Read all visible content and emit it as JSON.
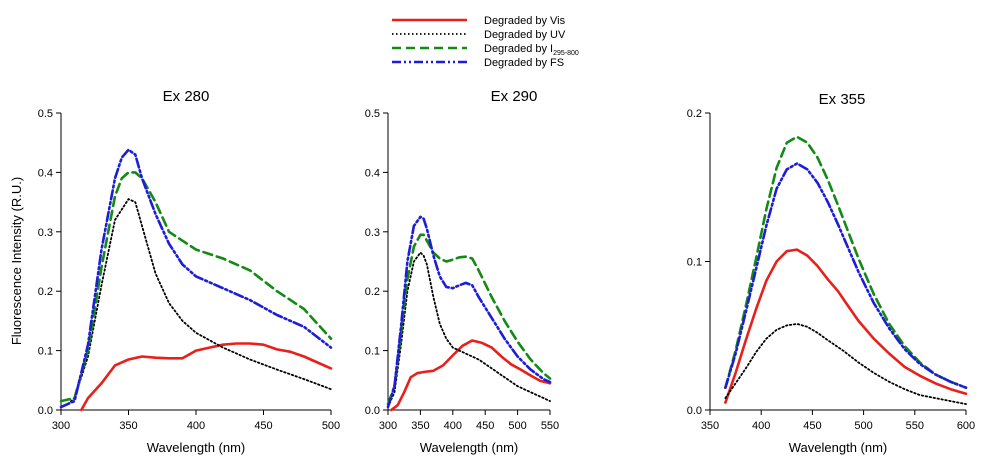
{
  "legend": {
    "items": [
      {
        "label": "Degraded by Vis",
        "sub": "",
        "color": "#e8201b",
        "dash": "solid"
      },
      {
        "label": "Degraded by UV",
        "sub": "",
        "color": "#000000",
        "dash": "dotted"
      },
      {
        "label": "Degraded by I",
        "sub": "295-800",
        "color": "#138a13",
        "dash": "dashed"
      },
      {
        "label": "Degraded by FS",
        "sub": "",
        "color": "#1d1dd8",
        "dash": "dashdotdot"
      }
    ]
  },
  "chart_data": [
    {
      "type": "line",
      "title": "Ex 280",
      "xlabel": "Wavelength (nm)",
      "ylabel": "Fluorescence Intensity (R.U.)",
      "xlim": [
        300,
        500
      ],
      "ylim": [
        0,
        0.5
      ],
      "xticks": [
        300,
        350,
        400,
        450,
        500
      ],
      "yticks": [
        0.0,
        0.1,
        0.2,
        0.3,
        0.4,
        0.5
      ],
      "ytick_labels": [
        "0.0",
        "0.1",
        "0.2",
        "0.3",
        "0.4",
        "0.5"
      ],
      "series": [
        {
          "name": "Degraded by Vis",
          "points": [
            [
              315,
              0
            ],
            [
              320,
              0.02
            ],
            [
              330,
              0.045
            ],
            [
              340,
              0.075
            ],
            [
              350,
              0.085
            ],
            [
              360,
              0.09
            ],
            [
              370,
              0.088
            ],
            [
              380,
              0.087
            ],
            [
              390,
              0.087
            ],
            [
              400,
              0.1
            ],
            [
              410,
              0.105
            ],
            [
              420,
              0.11
            ],
            [
              430,
              0.112
            ],
            [
              440,
              0.112
            ],
            [
              450,
              0.11
            ],
            [
              460,
              0.102
            ],
            [
              470,
              0.098
            ],
            [
              480,
              0.09
            ],
            [
              490,
              0.08
            ],
            [
              500,
              0.07
            ]
          ]
        },
        {
          "name": "Degraded by UV",
          "points": [
            [
              305,
              0.01
            ],
            [
              310,
              0.02
            ],
            [
              320,
              0.09
            ],
            [
              330,
              0.21
            ],
            [
              340,
              0.32
            ],
            [
              350,
              0.355
            ],
            [
              355,
              0.35
            ],
            [
              360,
              0.31
            ],
            [
              370,
              0.23
            ],
            [
              380,
              0.18
            ],
            [
              390,
              0.15
            ],
            [
              400,
              0.13
            ],
            [
              420,
              0.105
            ],
            [
              440,
              0.085
            ],
            [
              460,
              0.068
            ],
            [
              480,
              0.052
            ],
            [
              500,
              0.035
            ]
          ]
        },
        {
          "name": "Degraded by I295-800",
          "points": [
            [
              300,
              0.015
            ],
            [
              310,
              0.02
            ],
            [
              320,
              0.1
            ],
            [
              330,
              0.24
            ],
            [
              340,
              0.36
            ],
            [
              345,
              0.39
            ],
            [
              350,
              0.4
            ],
            [
              355,
              0.4
            ],
            [
              360,
              0.39
            ],
            [
              370,
              0.35
            ],
            [
              380,
              0.3
            ],
            [
              390,
              0.285
            ],
            [
              400,
              0.27
            ],
            [
              420,
              0.255
            ],
            [
              440,
              0.235
            ],
            [
              460,
              0.2
            ],
            [
              480,
              0.17
            ],
            [
              500,
              0.12
            ]
          ]
        },
        {
          "name": "Degraded by FS",
          "points": [
            [
              300,
              0.005
            ],
            [
              310,
              0.015
            ],
            [
              320,
              0.11
            ],
            [
              330,
              0.27
            ],
            [
              340,
              0.39
            ],
            [
              345,
              0.425
            ],
            [
              350,
              0.438
            ],
            [
              355,
              0.43
            ],
            [
              360,
              0.39
            ],
            [
              370,
              0.33
            ],
            [
              380,
              0.28
            ],
            [
              390,
              0.245
            ],
            [
              400,
              0.225
            ],
            [
              420,
              0.205
            ],
            [
              440,
              0.185
            ],
            [
              460,
              0.16
            ],
            [
              480,
              0.14
            ],
            [
              500,
              0.105
            ]
          ]
        }
      ]
    },
    {
      "type": "line",
      "title": "Ex 290",
      "xlabel": "Wavelength (nm)",
      "ylabel": "",
      "xlim": [
        300,
        550
      ],
      "ylim": [
        0,
        0.5
      ],
      "xticks": [
        300,
        350,
        400,
        450,
        500,
        550
      ],
      "yticks": [
        0.0,
        0.1,
        0.2,
        0.3,
        0.4,
        0.5
      ],
      "ytick_labels": [
        "0.0",
        "0.1",
        "0.2",
        "0.3",
        "0.4",
        "0.5"
      ],
      "series": [
        {
          "name": "Degraded by Vis",
          "points": [
            [
              305,
              0
            ],
            [
              315,
              0.008
            ],
            [
              325,
              0.03
            ],
            [
              335,
              0.055
            ],
            [
              345,
              0.062
            ],
            [
              355,
              0.064
            ],
            [
              370,
              0.066
            ],
            [
              385,
              0.075
            ],
            [
              400,
              0.092
            ],
            [
              415,
              0.108
            ],
            [
              430,
              0.117
            ],
            [
              445,
              0.113
            ],
            [
              460,
              0.105
            ],
            [
              475,
              0.09
            ],
            [
              490,
              0.077
            ],
            [
              505,
              0.068
            ],
            [
              520,
              0.058
            ],
            [
              535,
              0.049
            ],
            [
              550,
              0.045
            ]
          ]
        },
        {
          "name": "Degraded by UV",
          "points": [
            [
              300,
              0.005
            ],
            [
              310,
              0.03
            ],
            [
              320,
              0.11
            ],
            [
              330,
              0.2
            ],
            [
              340,
              0.25
            ],
            [
              350,
              0.265
            ],
            [
              355,
              0.26
            ],
            [
              360,
              0.245
            ],
            [
              370,
              0.19
            ],
            [
              380,
              0.145
            ],
            [
              390,
              0.12
            ],
            [
              400,
              0.105
            ],
            [
              420,
              0.095
            ],
            [
              440,
              0.085
            ],
            [
              460,
              0.07
            ],
            [
              480,
              0.055
            ],
            [
              500,
              0.04
            ],
            [
              520,
              0.03
            ],
            [
              540,
              0.02
            ],
            [
              550,
              0.015
            ]
          ]
        },
        {
          "name": "Degraded by I295-800",
          "points": [
            [
              300,
              0.01
            ],
            [
              310,
              0.04
            ],
            [
              320,
              0.13
            ],
            [
              330,
              0.22
            ],
            [
              340,
              0.275
            ],
            [
              350,
              0.295
            ],
            [
              355,
              0.295
            ],
            [
              360,
              0.285
            ],
            [
              370,
              0.265
            ],
            [
              380,
              0.255
            ],
            [
              390,
              0.25
            ],
            [
              400,
              0.253
            ],
            [
              410,
              0.257
            ],
            [
              420,
              0.258
            ],
            [
              430,
              0.255
            ],
            [
              440,
              0.235
            ],
            [
              460,
              0.19
            ],
            [
              480,
              0.15
            ],
            [
              500,
              0.115
            ],
            [
              520,
              0.085
            ],
            [
              540,
              0.062
            ],
            [
              550,
              0.053
            ]
          ]
        },
        {
          "name": "Degraded by FS",
          "points": [
            [
              300,
              0.005
            ],
            [
              310,
              0.04
            ],
            [
              320,
              0.14
            ],
            [
              330,
              0.25
            ],
            [
              340,
              0.31
            ],
            [
              350,
              0.325
            ],
            [
              355,
              0.322
            ],
            [
              360,
              0.305
            ],
            [
              370,
              0.26
            ],
            [
              380,
              0.225
            ],
            [
              390,
              0.207
            ],
            [
              400,
              0.205
            ],
            [
              410,
              0.21
            ],
            [
              420,
              0.214
            ],
            [
              430,
              0.21
            ],
            [
              440,
              0.19
            ],
            [
              460,
              0.155
            ],
            [
              480,
              0.12
            ],
            [
              500,
              0.09
            ],
            [
              520,
              0.068
            ],
            [
              540,
              0.052
            ],
            [
              550,
              0.047
            ]
          ]
        }
      ]
    },
    {
      "type": "line",
      "title": "Ex 355",
      "xlabel": "Wavelength (nm)",
      "ylabel": "",
      "xlim": [
        350,
        600
      ],
      "ylim": [
        0,
        0.2
      ],
      "xticks": [
        350,
        400,
        450,
        500,
        550,
        600
      ],
      "yticks": [
        0.0,
        0.1,
        0.2
      ],
      "ytick_labels": [
        "0.0",
        "0.1",
        "0.2"
      ],
      "series": [
        {
          "name": "Degraded by Vis",
          "points": [
            [
              365,
              0.005
            ],
            [
              375,
              0.025
            ],
            [
              385,
              0.047
            ],
            [
              395,
              0.068
            ],
            [
              405,
              0.087
            ],
            [
              415,
              0.1
            ],
            [
              425,
              0.107
            ],
            [
              435,
              0.108
            ],
            [
              445,
              0.104
            ],
            [
              455,
              0.097
            ],
            [
              465,
              0.088
            ],
            [
              475,
              0.08
            ],
            [
              485,
              0.07
            ],
            [
              495,
              0.06
            ],
            [
              510,
              0.048
            ],
            [
              525,
              0.038
            ],
            [
              540,
              0.029
            ],
            [
              555,
              0.023
            ],
            [
              570,
              0.018
            ],
            [
              585,
              0.014
            ],
            [
              600,
              0.011
            ]
          ]
        },
        {
          "name": "Degraded by UV",
          "points": [
            [
              365,
              0.008
            ],
            [
              375,
              0.018
            ],
            [
              385,
              0.028
            ],
            [
              395,
              0.039
            ],
            [
              405,
              0.048
            ],
            [
              415,
              0.054
            ],
            [
              425,
              0.057
            ],
            [
              435,
              0.058
            ],
            [
              445,
              0.056
            ],
            [
              455,
              0.052
            ],
            [
              465,
              0.047
            ],
            [
              480,
              0.04
            ],
            [
              495,
              0.032
            ],
            [
              510,
              0.025
            ],
            [
              525,
              0.019
            ],
            [
              540,
              0.014
            ],
            [
              555,
              0.01
            ],
            [
              570,
              0.008
            ],
            [
              585,
              0.006
            ],
            [
              600,
              0.004
            ]
          ]
        },
        {
          "name": "Degraded by I295-800",
          "points": [
            [
              365,
              0.015
            ],
            [
              375,
              0.04
            ],
            [
              385,
              0.07
            ],
            [
              395,
              0.102
            ],
            [
              405,
              0.135
            ],
            [
              415,
              0.163
            ],
            [
              425,
              0.18
            ],
            [
              435,
              0.184
            ],
            [
              445,
              0.18
            ],
            [
              455,
              0.17
            ],
            [
              465,
              0.155
            ],
            [
              475,
              0.138
            ],
            [
              485,
              0.12
            ],
            [
              495,
              0.102
            ],
            [
              510,
              0.078
            ],
            [
              525,
              0.058
            ],
            [
              540,
              0.043
            ],
            [
              555,
              0.032
            ],
            [
              570,
              0.024
            ],
            [
              585,
              0.019
            ],
            [
              600,
              0.015
            ]
          ]
        },
        {
          "name": "Degraded by FS",
          "points": [
            [
              365,
              0.015
            ],
            [
              375,
              0.038
            ],
            [
              385,
              0.066
            ],
            [
              395,
              0.095
            ],
            [
              405,
              0.124
            ],
            [
              415,
              0.149
            ],
            [
              425,
              0.162
            ],
            [
              435,
              0.166
            ],
            [
              445,
              0.162
            ],
            [
              455,
              0.153
            ],
            [
              465,
              0.14
            ],
            [
              475,
              0.125
            ],
            [
              485,
              0.109
            ],
            [
              495,
              0.093
            ],
            [
              510,
              0.072
            ],
            [
              525,
              0.055
            ],
            [
              540,
              0.041
            ],
            [
              555,
              0.031
            ],
            [
              570,
              0.024
            ],
            [
              585,
              0.019
            ],
            [
              600,
              0.015
            ]
          ]
        }
      ]
    }
  ]
}
